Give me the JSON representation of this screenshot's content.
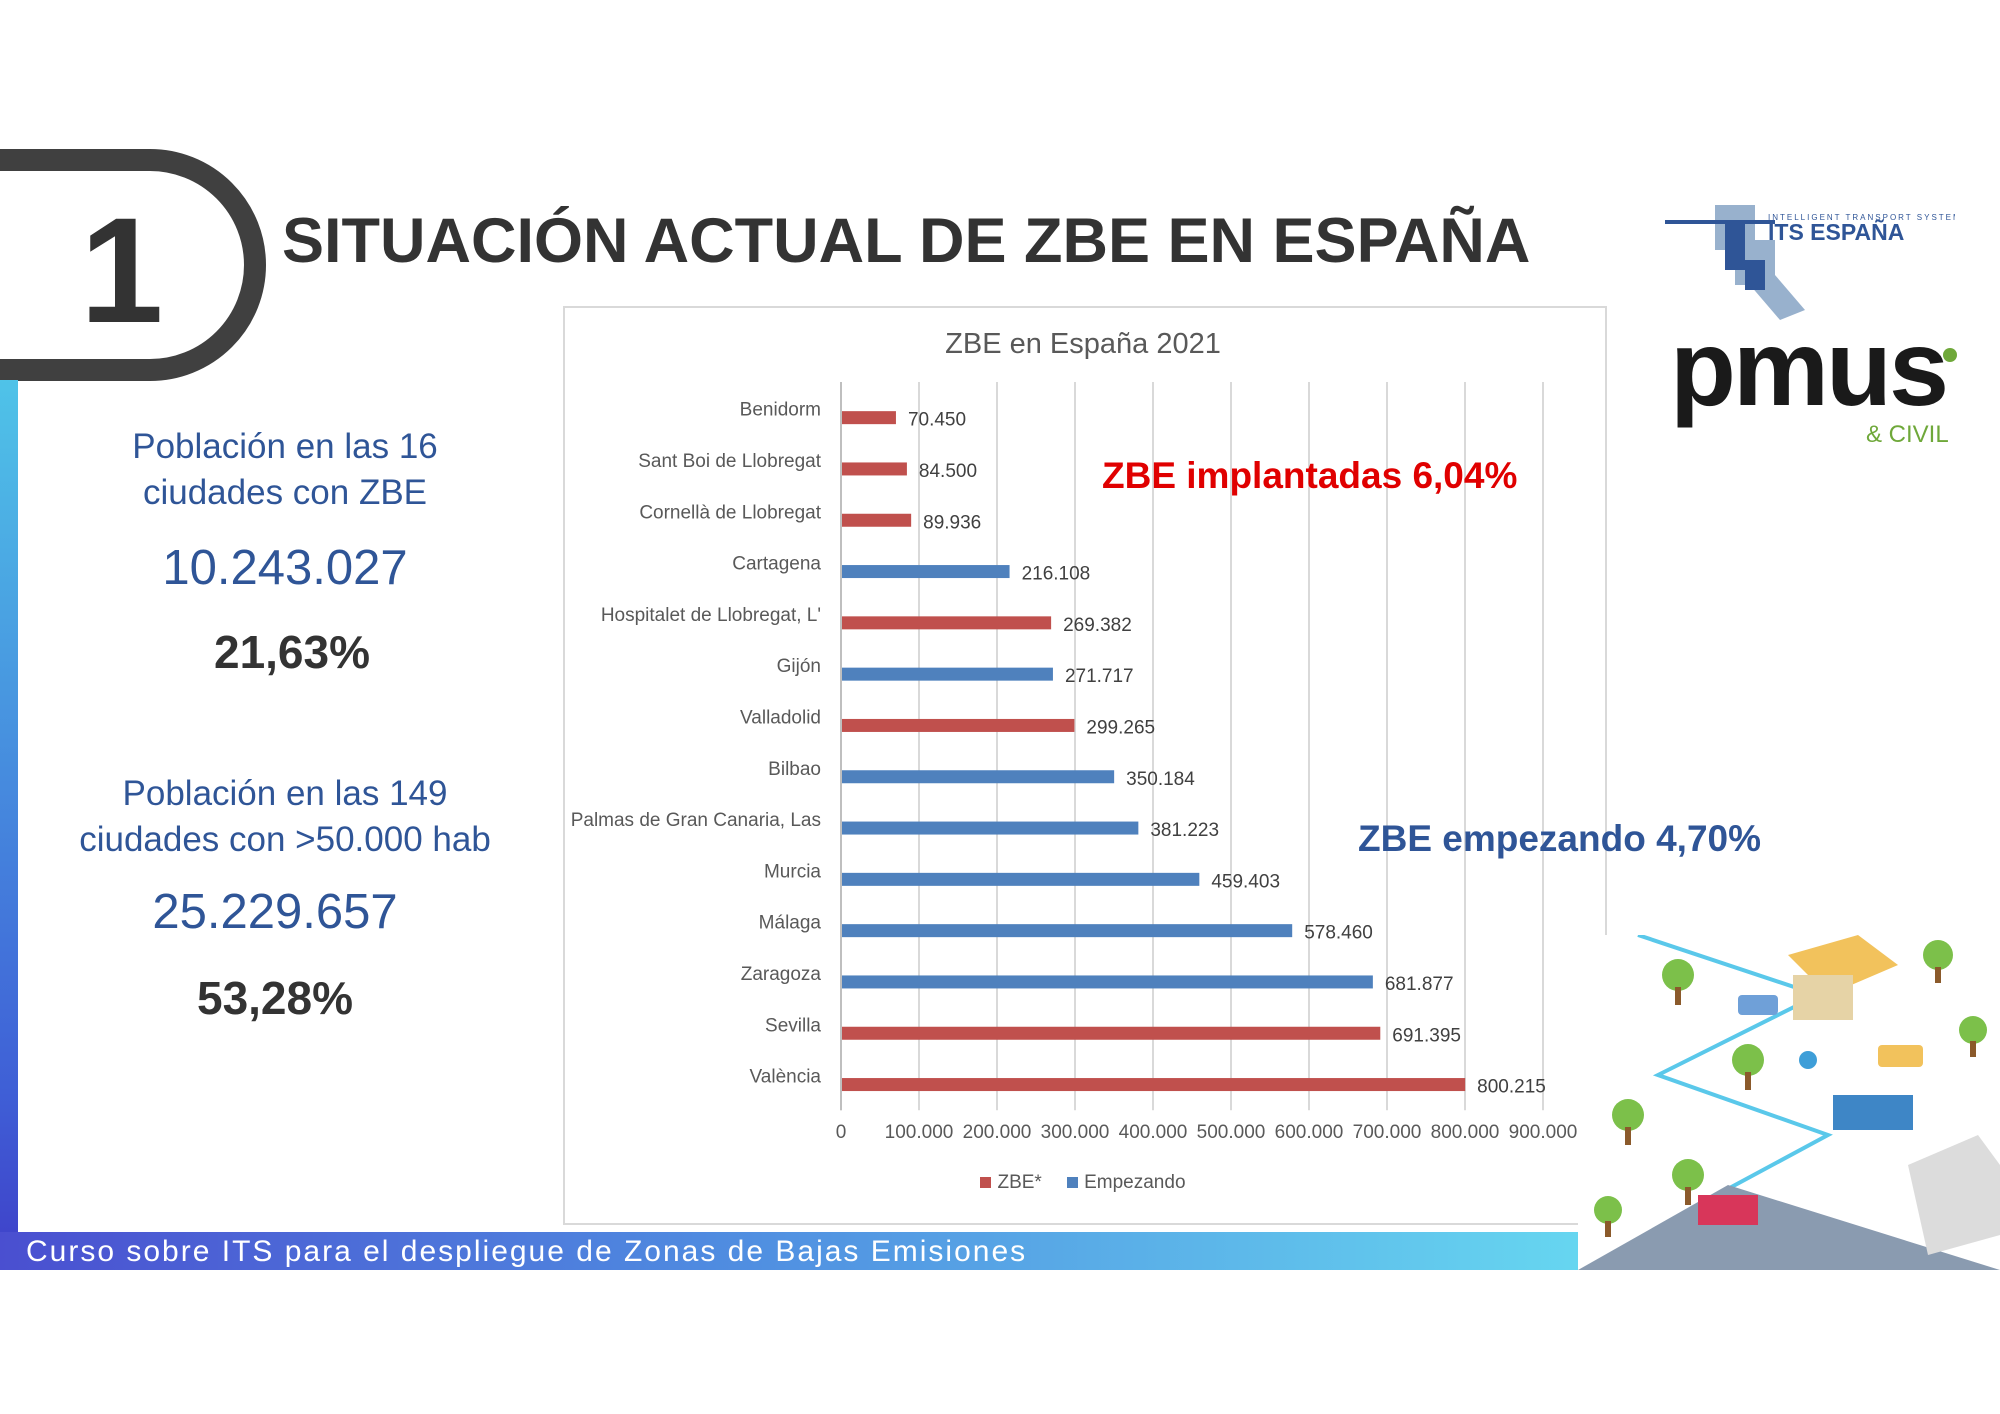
{
  "section_number": "1",
  "page_title": "SITUACIÓN ACTUAL DE ZBE EN ESPAÑA",
  "stats": [
    {
      "label_line1": "Población en las 16",
      "label_line2": "ciudades con ZBE",
      "number": "10.243.027",
      "percent": "21,63%"
    },
    {
      "label_line1": "Población en las 149",
      "label_line2": "ciudades con >50.000 hab",
      "number": "25.229.657",
      "percent": "53,28%"
    }
  ],
  "annotations": {
    "implantadas": "ZBE implantadas  6,04%",
    "empezando": "ZBE empezando  4,70%"
  },
  "footer_text": "Curso sobre ITS para el despliegue de Zonas de Bajas Emisiones",
  "logos": {
    "its_small": "INTELLIGENT TRANSPORT SYSTEM",
    "its_main": "ITS ESPAÑA",
    "pmus_main": "pmus",
    "pmus_sub": "& CIVIL"
  },
  "colors": {
    "zbe": "#c0504d",
    "empezando": "#4f81bd",
    "title_dark": "#333333",
    "blue_text": "#2f5597"
  },
  "chart_data": {
    "type": "bar",
    "orientation": "horizontal",
    "title": "ZBE en España 2021",
    "categories": [
      "Benidorm",
      "Sant Boi de Llobregat",
      "Cornellà de Llobregat",
      "Cartagena",
      "Hospitalet de Llobregat, L'",
      "Gijón",
      "Valladolid",
      "Bilbao",
      "Palmas de Gran Canaria, Las",
      "Murcia",
      "Málaga",
      "Zaragoza",
      "Sevilla",
      "València"
    ],
    "values": [
      70450,
      84500,
      89936,
      216108,
      269382,
      271717,
      299265,
      350184,
      381223,
      459403,
      578460,
      681877,
      691395,
      800215
    ],
    "value_labels": [
      "70.450",
      "84.500",
      "89.936",
      "216.108",
      "269.382",
      "271.717",
      "299.265",
      "350.184",
      "381.223",
      "459.403",
      "578.460",
      "681.877",
      "691.395",
      "800.215"
    ],
    "series_of_bar": [
      "ZBE*",
      "ZBE*",
      "ZBE*",
      "Empezando",
      "ZBE*",
      "Empezando",
      "ZBE*",
      "Empezando",
      "Empezando",
      "Empezando",
      "Empezando",
      "Empezando",
      "ZBE*",
      "ZBE*"
    ],
    "legend": [
      "ZBE*",
      "Empezando"
    ],
    "legend_position": "bottom",
    "xlim": [
      0,
      900000
    ],
    "x_ticks": [
      0,
      100000,
      200000,
      300000,
      400000,
      500000,
      600000,
      700000,
      800000,
      900000
    ],
    "x_tick_labels": [
      "0",
      "100.000",
      "200.000",
      "300.000",
      "400.000",
      "500.000",
      "600.000",
      "700.000",
      "800.000",
      "900.000"
    ],
    "grid": "vertical"
  }
}
